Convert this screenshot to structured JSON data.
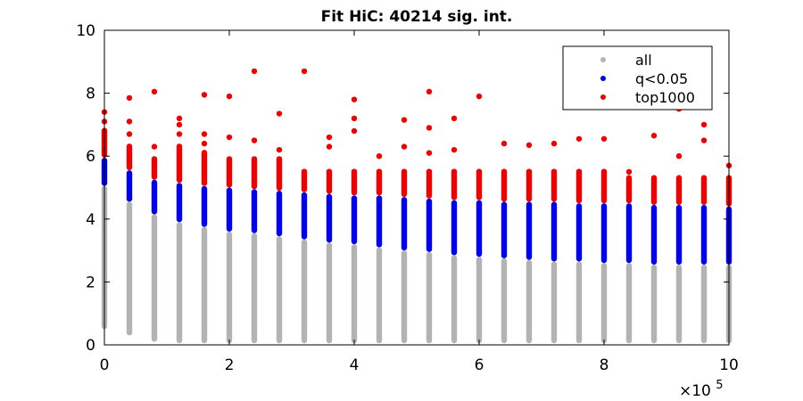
{
  "chart_data": {
    "type": "scatter",
    "title": "Fit HiC: 40214 sig. int.",
    "xlabel": "",
    "ylabel": "",
    "xlim": [
      0,
      1000000
    ],
    "ylim": [
      0,
      10
    ],
    "x_multiplier_label": "×10",
    "x_multiplier_exponent": "5",
    "xticks": [
      0,
      200000,
      400000,
      600000,
      800000,
      1000000
    ],
    "xtick_labels": [
      "0",
      "2",
      "4",
      "6",
      "8",
      "10"
    ],
    "yticks": [
      0,
      2,
      4,
      6,
      8,
      10
    ],
    "ytick_labels": [
      "0",
      "2",
      "4",
      "6",
      "8",
      "10"
    ],
    "grid": false,
    "legend_position": "top-right",
    "x": [
      0,
      40000,
      80000,
      120000,
      160000,
      200000,
      240000,
      280000,
      320000,
      360000,
      400000,
      440000,
      480000,
      520000,
      560000,
      600000,
      640000,
      680000,
      720000,
      760000,
      800000,
      840000,
      880000,
      920000,
      960000,
      1000000
    ],
    "series": [
      {
        "name": "all",
        "color": "#b3b3b3",
        "min": [
          0.5,
          0.3,
          0.1,
          0.05,
          0.05,
          0.05,
          0.05,
          0.05,
          0.05,
          0.05,
          0.05,
          0.05,
          0.05,
          0.05,
          0.05,
          0.05,
          0.05,
          0.05,
          0.05,
          0.05,
          0.05,
          0.05,
          0.05,
          0.05,
          0.05,
          0.05
        ],
        "max": [
          5.05,
          4.55,
          4.15,
          3.9,
          3.75,
          3.6,
          3.55,
          3.45,
          3.35,
          3.25,
          3.2,
          3.1,
          3.0,
          2.95,
          2.85,
          2.8,
          2.75,
          2.7,
          2.65,
          2.65,
          2.6,
          2.6,
          2.55,
          2.55,
          2.55,
          2.55
        ]
      },
      {
        "name": "q<0.05",
        "color": "#0000ee",
        "min": [
          5.05,
          4.55,
          4.15,
          3.9,
          3.75,
          3.6,
          3.55,
          3.45,
          3.35,
          3.25,
          3.2,
          3.1,
          3.0,
          2.95,
          2.85,
          2.8,
          2.75,
          2.7,
          2.65,
          2.65,
          2.6,
          2.6,
          2.55,
          2.55,
          2.55,
          2.55
        ],
        "max": [
          5.95,
          5.55,
          5.25,
          5.15,
          5.05,
          5.0,
          4.95,
          4.9,
          4.85,
          4.8,
          4.75,
          4.75,
          4.7,
          4.65,
          4.6,
          4.6,
          4.55,
          4.55,
          4.55,
          4.5,
          4.5,
          4.5,
          4.45,
          4.45,
          4.45,
          4.4
        ]
      },
      {
        "name": "top1000",
        "color": "#ee0000",
        "min": [
          5.95,
          5.55,
          5.25,
          5.15,
          5.05,
          5.0,
          4.95,
          4.9,
          4.85,
          4.8,
          4.75,
          4.75,
          4.7,
          4.65,
          4.6,
          4.6,
          4.55,
          4.55,
          4.55,
          4.5,
          4.5,
          4.5,
          4.45,
          4.45,
          4.45,
          4.4
        ],
        "max": [
          6.9,
          6.4,
          6.0,
          6.4,
          6.2,
          6.0,
          6.0,
          6.0,
          5.6,
          5.6,
          5.6,
          5.6,
          5.6,
          5.6,
          5.6,
          5.6,
          5.6,
          5.6,
          5.6,
          5.6,
          5.6,
          5.4,
          5.4,
          5.4,
          5.4,
          5.4
        ],
        "outliers": [
          [
            0,
            7.1
          ],
          [
            0,
            7.4
          ],
          [
            40000,
            6.7
          ],
          [
            40000,
            7.1
          ],
          [
            40000,
            7.85
          ],
          [
            80000,
            6.3
          ],
          [
            80000,
            8.05
          ],
          [
            120000,
            6.7
          ],
          [
            120000,
            7.0
          ],
          [
            120000,
            7.2
          ],
          [
            160000,
            6.4
          ],
          [
            160000,
            6.7
          ],
          [
            160000,
            7.95
          ],
          [
            200000,
            6.6
          ],
          [
            200000,
            7.9
          ],
          [
            240000,
            6.5
          ],
          [
            240000,
            8.7
          ],
          [
            280000,
            6.2
          ],
          [
            280000,
            7.35
          ],
          [
            320000,
            8.7
          ],
          [
            360000,
            6.3
          ],
          [
            360000,
            6.6
          ],
          [
            400000,
            6.8
          ],
          [
            400000,
            7.2
          ],
          [
            400000,
            7.8
          ],
          [
            440000,
            6.0
          ],
          [
            480000,
            6.3
          ],
          [
            480000,
            7.15
          ],
          [
            520000,
            6.1
          ],
          [
            520000,
            6.9
          ],
          [
            520000,
            8.05
          ],
          [
            560000,
            6.2
          ],
          [
            560000,
            7.2
          ],
          [
            600000,
            7.9
          ],
          [
            640000,
            6.4
          ],
          [
            680000,
            6.35
          ],
          [
            720000,
            6.4
          ],
          [
            760000,
            6.55
          ],
          [
            800000,
            6.55
          ],
          [
            840000,
            5.5
          ],
          [
            880000,
            6.65
          ],
          [
            920000,
            6.0
          ],
          [
            920000,
            7.5
          ],
          [
            960000,
            6.5
          ],
          [
            960000,
            7.0
          ],
          [
            1000000,
            5.7
          ]
        ]
      }
    ]
  }
}
